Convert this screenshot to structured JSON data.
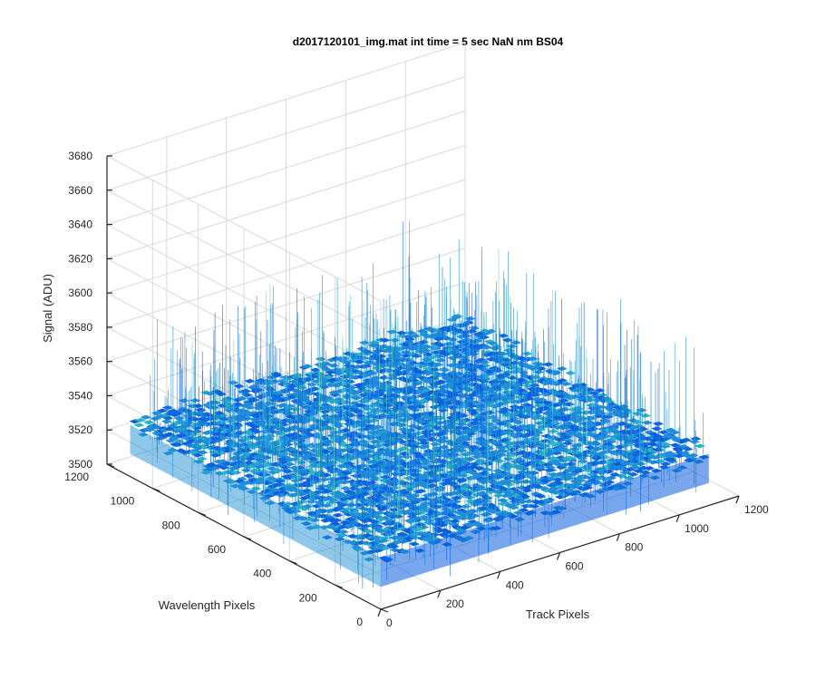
{
  "chart_data": {
    "type": "surface",
    "title": "d2017120101_img.mat int time = 5 sec  NaN nm BS04",
    "xlabel": "Track Pixels",
    "ylabel": "Wavelength Pixels",
    "zlabel": "Signal (ADU)",
    "xlim": [
      0,
      1200
    ],
    "ylim": [
      0,
      1200
    ],
    "zlim": [
      3500,
      3680
    ],
    "xticks": [
      "0",
      "200",
      "400",
      "600",
      "800",
      "1000",
      "1200"
    ],
    "yticks": [
      "0",
      "200",
      "400",
      "600",
      "800",
      "1000",
      "1200"
    ],
    "zticks": [
      "3500",
      "3520",
      "3540",
      "3560",
      "3580",
      "3600",
      "3620",
      "3640",
      "3660",
      "3680"
    ],
    "surface": {
      "x_range": [
        1,
        1100
      ],
      "y_range": [
        1,
        1100
      ],
      "mean_signal": 3530,
      "noise_band": [
        3505,
        3600
      ],
      "colormap": "parula",
      "grid": true
    },
    "colors": {
      "surface_low": "#0a5fe0",
      "surface_mid": "#1f8fd8",
      "surface_high": "#2bb5c8",
      "spike": "#66d9b0",
      "grid": "#d9d9d9",
      "axis": "#262626"
    }
  }
}
